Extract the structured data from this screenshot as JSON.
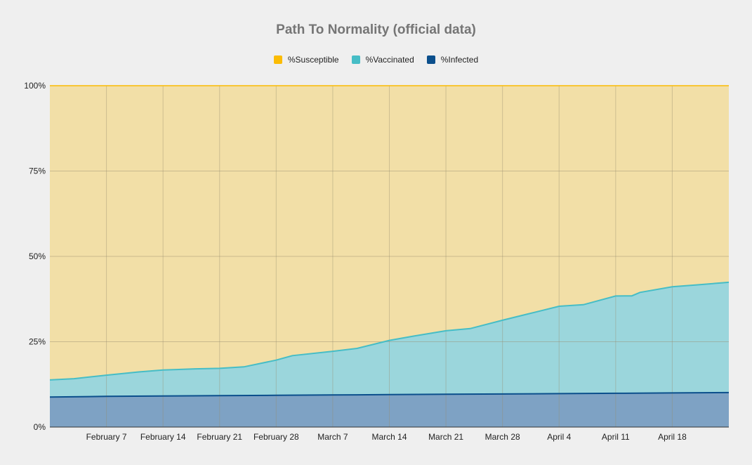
{
  "chart_data": {
    "type": "area",
    "stacked": true,
    "title": "Path To Normality (official data)",
    "xlabel": "",
    "ylabel": "",
    "ylim": [
      0,
      100
    ],
    "y_ticks": [
      "0%",
      "25%",
      "50%",
      "75%",
      "100%"
    ],
    "x_ticks": [
      "February 7",
      "February 14",
      "February 21",
      "February 28",
      "March 7",
      "March 14",
      "March 21",
      "March 28",
      "April 4",
      "April 11",
      "April 18"
    ],
    "x_range": [
      "2021-01-31",
      "2021-04-25"
    ],
    "grid": true,
    "legend_position": "top",
    "series": [
      {
        "name": "%Infected",
        "color": "#0b4f8c",
        "fill": "#7ea2c4",
        "points": [
          {
            "x": "2021-01-31",
            "y": 8.8
          },
          {
            "x": "2021-02-07",
            "y": 9.0
          },
          {
            "x": "2021-02-14",
            "y": 9.1
          },
          {
            "x": "2021-02-21",
            "y": 9.2
          },
          {
            "x": "2021-02-28",
            "y": 9.3
          },
          {
            "x": "2021-03-07",
            "y": 9.4
          },
          {
            "x": "2021-03-14",
            "y": 9.5
          },
          {
            "x": "2021-03-21",
            "y": 9.6
          },
          {
            "x": "2021-03-28",
            "y": 9.7
          },
          {
            "x": "2021-04-04",
            "y": 9.8
          },
          {
            "x": "2021-04-11",
            "y": 9.9
          },
          {
            "x": "2021-04-18",
            "y": 10.0
          },
          {
            "x": "2021-04-25",
            "y": 10.1
          }
        ]
      },
      {
        "name": "%Vaccinated",
        "color": "#46bdc6",
        "fill": "#9bd6dc",
        "points": [
          {
            "x": "2021-01-31",
            "y": 5.0
          },
          {
            "x": "2021-02-03",
            "y": 5.3
          },
          {
            "x": "2021-02-07",
            "y": 6.2
          },
          {
            "x": "2021-02-11",
            "y": 7.1
          },
          {
            "x": "2021-02-14",
            "y": 7.6
          },
          {
            "x": "2021-02-18",
            "y": 7.9
          },
          {
            "x": "2021-02-21",
            "y": 8.0
          },
          {
            "x": "2021-02-24",
            "y": 8.4
          },
          {
            "x": "2021-02-28",
            "y": 10.3
          },
          {
            "x": "2021-03-02",
            "y": 11.6
          },
          {
            "x": "2021-03-07",
            "y": 12.8
          },
          {
            "x": "2021-03-10",
            "y": 13.6
          },
          {
            "x": "2021-03-14",
            "y": 15.9
          },
          {
            "x": "2021-03-17",
            "y": 17.1
          },
          {
            "x": "2021-03-21",
            "y": 18.6
          },
          {
            "x": "2021-03-24",
            "y": 19.2
          },
          {
            "x": "2021-03-28",
            "y": 21.6
          },
          {
            "x": "2021-03-31",
            "y": 23.3
          },
          {
            "x": "2021-04-04",
            "y": 25.6
          },
          {
            "x": "2021-04-07",
            "y": 26.0
          },
          {
            "x": "2021-04-11",
            "y": 28.5
          },
          {
            "x": "2021-04-13",
            "y": 28.5
          },
          {
            "x": "2021-04-14",
            "y": 29.5
          },
          {
            "x": "2021-04-18",
            "y": 31.1
          },
          {
            "x": "2021-04-21",
            "y": 31.6
          },
          {
            "x": "2021-04-25",
            "y": 32.3
          }
        ]
      },
      {
        "name": "%Susceptible",
        "color": "#fbbc04",
        "fill": "#f2dfa7",
        "fill_to_top": true
      }
    ]
  }
}
